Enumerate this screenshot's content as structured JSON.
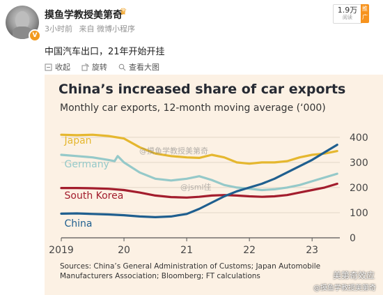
{
  "post": {
    "username": "摸鱼学教授美第奇",
    "time": "3小时前",
    "source": "来自 微博小程序",
    "text": "中国汽车出口，21年开始开挂",
    "fans_count": "1.9万",
    "fans_label": "阅读",
    "promo_label": "推广"
  },
  "toolbar": {
    "collect": "收起",
    "rotate": "旋转",
    "view_large": "查看大图"
  },
  "watermarks": {
    "center": "@摸鱼学教授美第奇",
    "heart": "@jsml佳",
    "brand": "美第奇效应",
    "brand_sub": "@摸鱼学教授美第奇"
  },
  "colors": {
    "background": "#fcf1e4",
    "japan": "#e5b72f",
    "germany": "#95c9c9",
    "south_korea": "#a31d2d",
    "china": "#1f5f8f"
  },
  "chart_data": {
    "type": "line",
    "title": "China’s increased share of car exports",
    "subtitle": "Monthly car exports, 12-month moving average (‘000)",
    "x_ticks": [
      "2019",
      "20",
      "21",
      "22",
      "23"
    ],
    "y_ticks": [
      "0",
      "100",
      "200",
      "300",
      "400"
    ],
    "ylim": [
      0,
      430
    ],
    "xlim": [
      2019.0,
      2023.42
    ],
    "grid": true,
    "y_axis_side": "right",
    "source": "Sources: China’s General Administration of Customs; Japan Automobile Manufacturers Association; Bloomberg; FT calculations",
    "series": [
      {
        "name": "Japan",
        "color": "#e5b72f",
        "points": [
          [
            2019.0,
            410
          ],
          [
            2019.25,
            408
          ],
          [
            2019.5,
            410
          ],
          [
            2019.75,
            405
          ],
          [
            2020.0,
            395
          ],
          [
            2020.25,
            360
          ],
          [
            2020.5,
            335
          ],
          [
            2020.75,
            325
          ],
          [
            2021.0,
            320
          ],
          [
            2021.2,
            318
          ],
          [
            2021.4,
            330
          ],
          [
            2021.6,
            320
          ],
          [
            2021.8,
            300
          ],
          [
            2022.0,
            295
          ],
          [
            2022.2,
            300
          ],
          [
            2022.4,
            300
          ],
          [
            2022.6,
            305
          ],
          [
            2022.8,
            320
          ],
          [
            2023.0,
            330
          ],
          [
            2023.2,
            335
          ],
          [
            2023.4,
            345
          ]
        ]
      },
      {
        "name": "Germany",
        "color": "#95c9c9",
        "points": [
          [
            2019.0,
            330
          ],
          [
            2019.25,
            325
          ],
          [
            2019.5,
            320
          ],
          [
            2019.75,
            310
          ],
          [
            2019.85,
            305
          ],
          [
            2019.9,
            325
          ],
          [
            2020.0,
            300
          ],
          [
            2020.25,
            260
          ],
          [
            2020.5,
            235
          ],
          [
            2020.75,
            228
          ],
          [
            2021.0,
            235
          ],
          [
            2021.2,
            245
          ],
          [
            2021.4,
            230
          ],
          [
            2021.6,
            210
          ],
          [
            2021.8,
            200
          ],
          [
            2022.0,
            195
          ],
          [
            2022.2,
            190
          ],
          [
            2022.4,
            193
          ],
          [
            2022.6,
            200
          ],
          [
            2022.8,
            210
          ],
          [
            2023.0,
            225
          ],
          [
            2023.2,
            240
          ],
          [
            2023.4,
            255
          ]
        ]
      },
      {
        "name": "South Korea",
        "color": "#a31d2d",
        "points": [
          [
            2019.0,
            198
          ],
          [
            2019.25,
            198
          ],
          [
            2019.5,
            197
          ],
          [
            2019.75,
            195
          ],
          [
            2020.0,
            190
          ],
          [
            2020.25,
            180
          ],
          [
            2020.5,
            168
          ],
          [
            2020.75,
            162
          ],
          [
            2021.0,
            160
          ],
          [
            2021.2,
            163
          ],
          [
            2021.4,
            168
          ],
          [
            2021.6,
            170
          ],
          [
            2021.8,
            168
          ],
          [
            2022.0,
            165
          ],
          [
            2022.2,
            163
          ],
          [
            2022.4,
            165
          ],
          [
            2022.6,
            170
          ],
          [
            2022.8,
            180
          ],
          [
            2023.0,
            190
          ],
          [
            2023.2,
            200
          ],
          [
            2023.4,
            215
          ]
        ]
      },
      {
        "name": "China",
        "color": "#1f5f8f",
        "points": [
          [
            2019.0,
            96
          ],
          [
            2019.25,
            97
          ],
          [
            2019.5,
            95
          ],
          [
            2019.75,
            93
          ],
          [
            2020.0,
            90
          ],
          [
            2020.25,
            85
          ],
          [
            2020.5,
            82
          ],
          [
            2020.75,
            85
          ],
          [
            2021.0,
            95
          ],
          [
            2021.2,
            115
          ],
          [
            2021.4,
            140
          ],
          [
            2021.6,
            165
          ],
          [
            2021.8,
            185
          ],
          [
            2022.0,
            200
          ],
          [
            2022.2,
            215
          ],
          [
            2022.4,
            235
          ],
          [
            2022.6,
            260
          ],
          [
            2022.8,
            285
          ],
          [
            2023.0,
            310
          ],
          [
            2023.2,
            340
          ],
          [
            2023.4,
            370
          ]
        ]
      }
    ]
  }
}
